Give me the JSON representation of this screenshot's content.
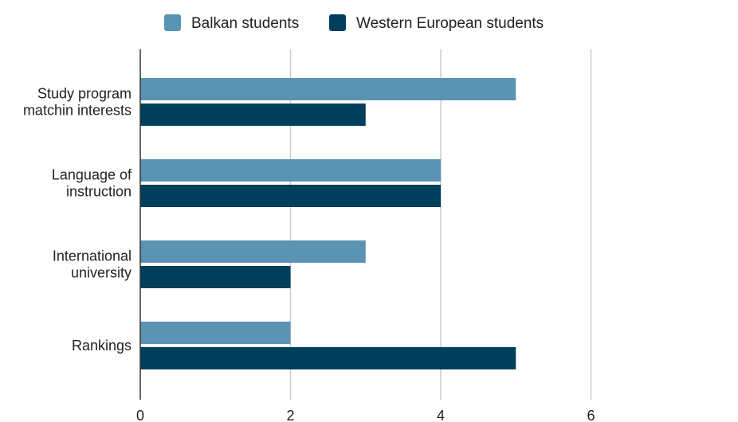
{
  "chart_data": {
    "type": "bar",
    "orientation": "horizontal",
    "categories": [
      [
        "Study program",
        "matchin interests"
      ],
      [
        "Language of",
        "instruction"
      ],
      [
        "International",
        "university"
      ],
      [
        "Rankings"
      ]
    ],
    "series": [
      {
        "name": "Balkan students",
        "color": "#5b93b2",
        "values": [
          5,
          4,
          3,
          2
        ]
      },
      {
        "name": "Western European students",
        "color": "#003f5c",
        "values": [
          3,
          4,
          2,
          5
        ]
      }
    ],
    "x_ticks": [
      0,
      2,
      4,
      6
    ],
    "xlim": [
      0,
      8
    ],
    "grid": true,
    "legend_position": "top"
  }
}
